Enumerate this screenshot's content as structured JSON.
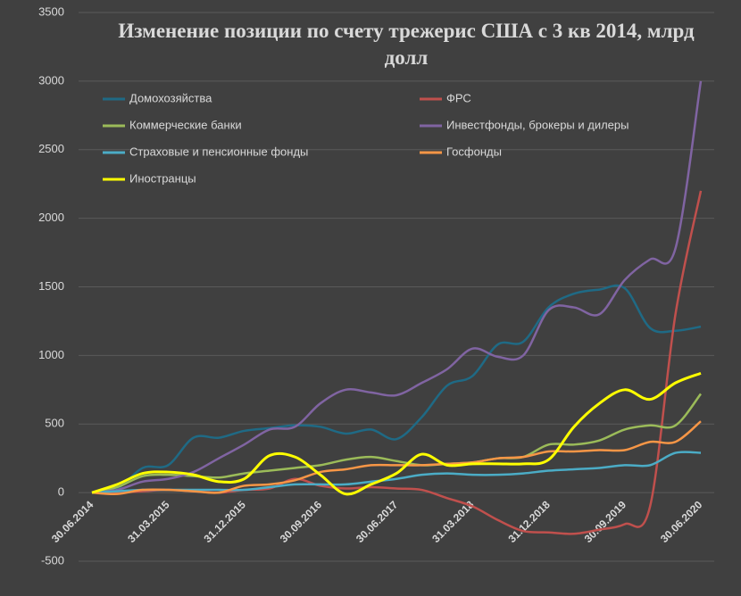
{
  "chart_data": {
    "type": "line",
    "title": "Изменение позиции по счету трежерис США с 3 кв 2014, млрд долл",
    "categories": [
      "30.06.2014",
      null,
      null,
      "31.03.2015",
      null,
      null,
      "31.12.2015",
      null,
      null,
      "30.09.2016",
      null,
      null,
      "30.06.2017",
      null,
      null,
      "31.03.2018",
      null,
      null,
      "31.12.2018",
      null,
      null,
      "30.09.2019",
      null,
      null,
      "30.06.2020"
    ],
    "series": [
      {
        "name": "Домохозяйства",
        "color": "#1f6a85",
        "values": [
          0,
          30,
          180,
          200,
          400,
          400,
          450,
          470,
          490,
          480,
          430,
          460,
          390,
          550,
          780,
          850,
          1080,
          1100,
          1350,
          1450,
          1480,
          1490,
          1200,
          1180,
          1210
        ]
      },
      {
        "name": "ФРС",
        "color": "#c0504d",
        "values": [
          0,
          0,
          10,
          20,
          10,
          0,
          20,
          30,
          100,
          50,
          30,
          40,
          30,
          20,
          -40,
          -100,
          -200,
          -280,
          -290,
          -300,
          -270,
          -230,
          -100,
          1300,
          2200
        ]
      },
      {
        "name": "Коммерческие банки",
        "color": "#9bbb59",
        "values": [
          0,
          40,
          120,
          130,
          120,
          110,
          140,
          160,
          180,
          200,
          240,
          260,
          230,
          200,
          210,
          220,
          250,
          260,
          350,
          350,
          380,
          460,
          490,
          490,
          720
        ]
      },
      {
        "name": "Инвестфонды, брокеры и дилеры",
        "color": "#8064a2",
        "values": [
          0,
          20,
          80,
          100,
          150,
          250,
          350,
          460,
          480,
          650,
          750,
          730,
          710,
          800,
          900,
          1050,
          990,
          1000,
          1330,
          1350,
          1300,
          1550,
          1700,
          1780,
          3000
        ]
      },
      {
        "name": "Страховые и пенсионные фонды",
        "color": "#4bacc6",
        "values": [
          0,
          10,
          20,
          20,
          20,
          20,
          20,
          40,
          60,
          60,
          60,
          80,
          100,
          130,
          140,
          130,
          130,
          140,
          160,
          170,
          180,
          200,
          200,
          290,
          290
        ]
      },
      {
        "name": "Госфонды",
        "color": "#f79646",
        "values": [
          0,
          -10,
          20,
          20,
          10,
          0,
          50,
          60,
          90,
          150,
          170,
          200,
          200,
          200,
          210,
          220,
          250,
          260,
          300,
          300,
          310,
          310,
          370,
          370,
          520
        ]
      },
      {
        "name": "Иностранцы",
        "color": "#ffff00",
        "values": [
          0,
          60,
          140,
          150,
          130,
          80,
          100,
          270,
          260,
          130,
          -10,
          60,
          140,
          280,
          200,
          210,
          210,
          210,
          240,
          480,
          650,
          750,
          680,
          800,
          870
        ]
      }
    ],
    "ylim": [
      -500,
      3500
    ],
    "yticks": [
      -500,
      0,
      500,
      1000,
      1500,
      2000,
      2500,
      3000,
      3500
    ],
    "grid": true
  }
}
